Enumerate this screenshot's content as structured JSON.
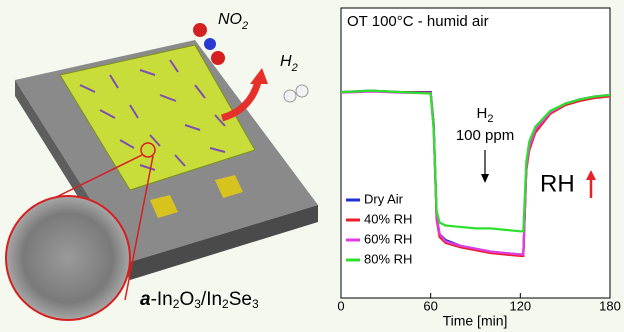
{
  "illustration": {
    "no2": [
      "NO",
      "2"
    ],
    "h2": [
      "H",
      "2"
    ],
    "material": [
      "a",
      "-In",
      "2",
      "O",
      "3",
      "/In",
      "2",
      "Se",
      "3"
    ]
  },
  "chart_data": {
    "type": "line",
    "title": "OT 100°C - humid air",
    "x_label": "Time [min]",
    "annotations": {
      "gas": [
        "H",
        "2"
      ],
      "concentration": "100 ppm",
      "rh": "RH"
    },
    "x": [
      0,
      20,
      40,
      60,
      62,
      64,
      66,
      70,
      80,
      90,
      100,
      110,
      120,
      122,
      124,
      126,
      130,
      140,
      150,
      160,
      170,
      180
    ],
    "series": [
      {
        "name": "Dry Air",
        "color": "#1f2fd6",
        "values": [
          71,
          71.5,
          71,
          71,
          60,
          28,
          22,
          20,
          18,
          17,
          16,
          15.5,
          15,
          15,
          45,
          52,
          58,
          64,
          67,
          68.5,
          69.5,
          70
        ]
      },
      {
        "name": "40% RH",
        "color": "#e8202a",
        "values": [
          71,
          71.3,
          71,
          70.8,
          59,
          27,
          21,
          19,
          17.5,
          16.5,
          15.5,
          15,
          14.5,
          14.5,
          44,
          51,
          57,
          63.5,
          66.5,
          68,
          69,
          69.5
        ]
      },
      {
        "name": "60% RH",
        "color": "#e03ce0",
        "values": [
          70.8,
          71.2,
          70.8,
          70.6,
          59,
          28,
          22,
          19.5,
          18,
          17,
          16,
          15.5,
          15,
          15,
          45,
          52,
          58,
          64,
          67,
          68.5,
          69.5,
          70
        ]
      },
      {
        "name": "80% RH",
        "color": "#2ee02e",
        "values": [
          71,
          71.5,
          71,
          70.5,
          58,
          30,
          26,
          25,
          24.5,
          24,
          24,
          23.5,
          23,
          23,
          47,
          54,
          59,
          64.5,
          67,
          68.5,
          69.5,
          70
        ]
      }
    ],
    "xlim": [
      0,
      180
    ],
    "xticks": [
      0,
      60,
      120,
      180
    ],
    "ylim": [
      0,
      100
    ]
  }
}
